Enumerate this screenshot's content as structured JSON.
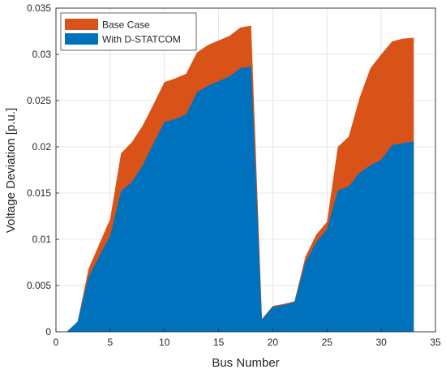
{
  "chart_data": {
    "type": "area",
    "xlabel": "Bus Number",
    "ylabel": "Voltage Deviation [p.u.]",
    "xlim": [
      0,
      35
    ],
    "ylim": [
      0,
      0.035
    ],
    "xticks": [
      0,
      5,
      10,
      15,
      20,
      25,
      30,
      35
    ],
    "yticks": [
      0,
      0.005,
      0.01,
      0.015,
      0.02,
      0.025,
      0.03,
      0.035
    ],
    "xtick_labels": [
      "0",
      "5",
      "10",
      "15",
      "20",
      "25",
      "30",
      "35"
    ],
    "ytick_labels": [
      "0",
      "0.005",
      "0.01",
      "0.015",
      "0.02",
      "0.025",
      "0.03",
      "0.035"
    ],
    "grid": true,
    "legend_position": "top-left",
    "x": [
      1,
      2,
      3,
      4,
      5,
      6,
      7,
      8,
      9,
      10,
      11,
      12,
      13,
      14,
      15,
      16,
      17,
      18,
      19,
      20,
      21,
      22,
      23,
      24,
      25,
      26,
      27,
      28,
      29,
      30,
      31,
      32,
      33
    ],
    "series": [
      {
        "name": "Base Case",
        "color": "#D95319",
        "values": [
          0,
          0.0011,
          0.0068,
          0.0095,
          0.0122,
          0.0193,
          0.0205,
          0.0223,
          0.0246,
          0.027,
          0.0274,
          0.0279,
          0.0302,
          0.031,
          0.0315,
          0.032,
          0.0329,
          0.0331,
          0.0014,
          0.0028,
          0.003,
          0.0033,
          0.0081,
          0.0105,
          0.0119,
          0.02,
          0.0211,
          0.0253,
          0.0285,
          0.03,
          0.0314,
          0.0317,
          0.0318
        ]
      },
      {
        "name": "With D-STATCOM",
        "color": "#0072BD",
        "values": [
          0,
          0.0011,
          0.0059,
          0.0082,
          0.0104,
          0.0152,
          0.0162,
          0.018,
          0.0204,
          0.0227,
          0.023,
          0.0235,
          0.0259,
          0.0266,
          0.0271,
          0.0276,
          0.0285,
          0.0287,
          0.0013,
          0.0027,
          0.0029,
          0.0032,
          0.0075,
          0.0097,
          0.0111,
          0.0153,
          0.0157,
          0.0172,
          0.018,
          0.0186,
          0.0202,
          0.0204,
          0.0206
        ]
      }
    ]
  }
}
